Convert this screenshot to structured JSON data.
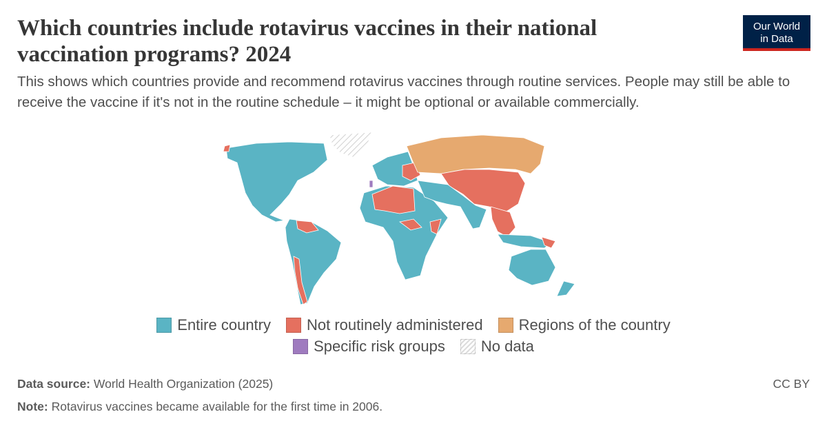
{
  "header": {
    "title_lines": [
      "Which countries include rotavirus vaccines in their national",
      "vaccination programs? 2024"
    ],
    "subtitle": "This shows which countries provide and recommend rotavirus vaccines through routine services. People may still be able to receive the vaccine if it's not in the routine schedule – it might be optional or available commercially.",
    "logo": [
      "Our World",
      "in Data"
    ]
  },
  "legend": [
    {
      "label": "Entire country",
      "color": "#5ab4c4"
    },
    {
      "label": "Not routinely administered",
      "color": "#e5705f"
    },
    {
      "label": "Regions of the country",
      "color": "#e6a96f"
    },
    {
      "label": "Specific risk groups",
      "color": "#9f7bbf"
    },
    {
      "label": "No data",
      "color": "#dcdcdc"
    }
  ],
  "footer": {
    "source_label": "Data source:",
    "source": "World Health Organization (2025)",
    "license": "CC BY",
    "note_label": "Note:",
    "note": "Rotavirus vaccines became available for the first time in 2006."
  }
}
